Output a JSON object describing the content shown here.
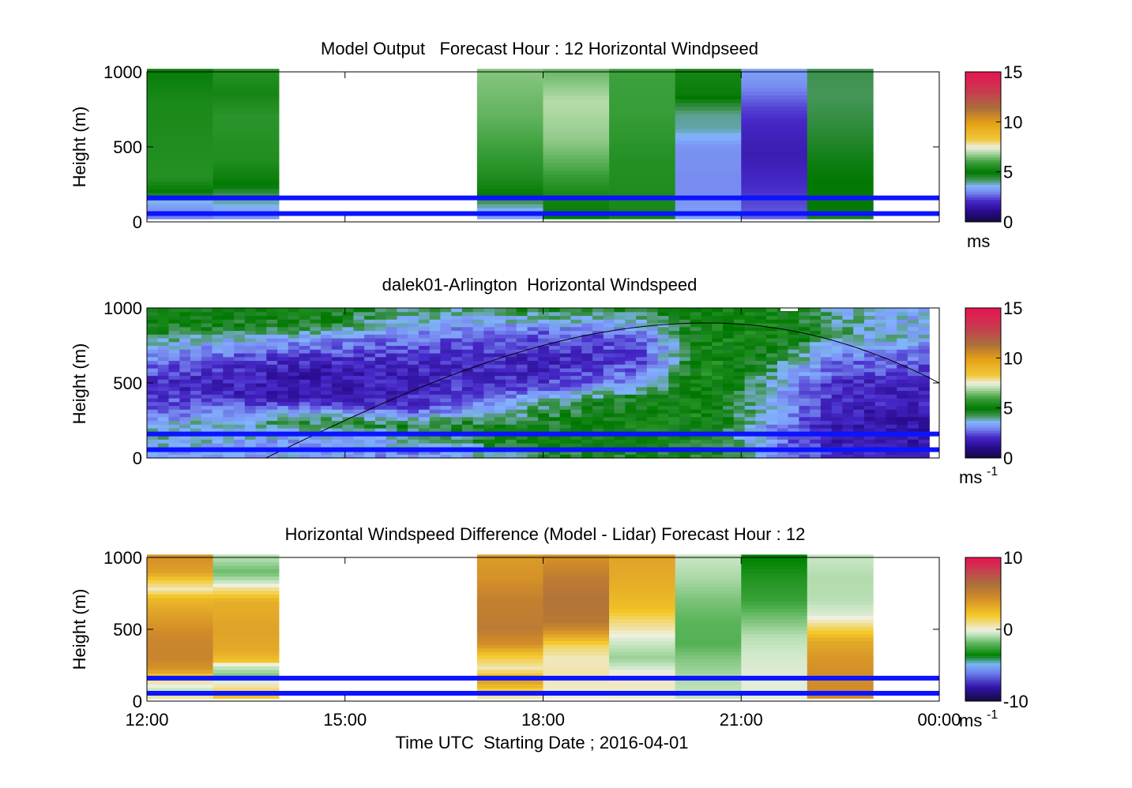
{
  "chart_data": [
    {
      "type": "heatmap",
      "title": "Model Output   Forecast Hour : 12 Horizontal Windpseed",
      "ylabel": "Height (m)",
      "ylim": [
        0,
        1000
      ],
      "yticks": [
        "0",
        "500",
        "1000"
      ],
      "xlim_hours": [
        12,
        24
      ],
      "colorbar": {
        "ticks": [
          "0",
          "5",
          "10",
          "15"
        ],
        "range": [
          0,
          15
        ],
        "unit": "ms",
        "unit_sup": ""
      },
      "reference_lines_m": [
        55,
        160
      ],
      "columns": [
        {
          "t0": 12.0,
          "t1": 13.0,
          "z_top": 1000,
          "speed": [
            [
              1000,
              5.1
            ],
            [
              800,
              5.4
            ],
            [
              500,
              5.5
            ],
            [
              300,
              5.6
            ],
            [
              200,
              5.0
            ],
            [
              120,
              3.4
            ],
            [
              40,
              2.9
            ]
          ]
        },
        {
          "t0": 13.0,
          "t1": 14.0,
          "z_top": 1000,
          "speed": [
            [
              1000,
              5.6
            ],
            [
              860,
              5.3
            ],
            [
              700,
              5.7
            ],
            [
              400,
              5.5
            ],
            [
              250,
              5.0
            ],
            [
              170,
              4.2
            ],
            [
              100,
              3.6
            ],
            [
              40,
              3.1
            ]
          ]
        },
        {
          "t0": 17.0,
          "t1": 18.0,
          "z_top": 1000,
          "speed": [
            [
              1000,
              6.6
            ],
            [
              700,
              6.3
            ],
            [
              500,
              6.0
            ],
            [
              300,
              5.5
            ],
            [
              200,
              5.1
            ],
            [
              100,
              3.8
            ],
            [
              40,
              3.3
            ]
          ]
        },
        {
          "t0": 18.0,
          "t1": 19.0,
          "z_top": 1000,
          "speed": [
            [
              1000,
              6.4
            ],
            [
              800,
              7.0
            ],
            [
              550,
              6.7
            ],
            [
              350,
              6.1
            ],
            [
              220,
              5.5
            ],
            [
              120,
              5.2
            ],
            [
              40,
              5.0
            ]
          ]
        },
        {
          "t0": 19.0,
          "t1": 20.0,
          "z_top": 1000,
          "speed": [
            [
              1000,
              6.0
            ],
            [
              700,
              5.9
            ],
            [
              450,
              5.6
            ],
            [
              250,
              5.5
            ],
            [
              120,
              5.4
            ],
            [
              40,
              5.3
            ]
          ]
        },
        {
          "t0": 20.0,
          "t1": 21.0,
          "z_top": 1000,
          "speed": [
            [
              1000,
              5.3
            ],
            [
              850,
              5.1
            ],
            [
              720,
              4.0
            ],
            [
              620,
              3.9
            ],
            [
              500,
              3.1
            ],
            [
              300,
              3.0
            ],
            [
              200,
              3.0
            ],
            [
              100,
              3.2
            ],
            [
              40,
              3.4
            ]
          ]
        },
        {
          "t0": 21.0,
          "t1": 22.0,
          "z_top": 1000,
          "speed": [
            [
              1000,
              3.3
            ],
            [
              900,
              3.0
            ],
            [
              750,
              2.3
            ],
            [
              600,
              1.9
            ],
            [
              450,
              1.7
            ],
            [
              300,
              2.0
            ],
            [
              150,
              2.3
            ],
            [
              40,
              2.6
            ]
          ]
        },
        {
          "t0": 22.0,
          "t1": 23.0,
          "z_top": 1000,
          "speed": [
            [
              1000,
              4.3
            ],
            [
              850,
              4.2
            ],
            [
              600,
              4.5
            ],
            [
              400,
              4.8
            ],
            [
              200,
              5.0
            ],
            [
              100,
              5.0
            ],
            [
              40,
              4.7
            ]
          ]
        }
      ]
    },
    {
      "type": "heatmap",
      "title": "dalek01-Arlington  Horizontal Windspeed",
      "ylabel": "Height (m)",
      "ylim": [
        0,
        1000
      ],
      "yticks": [
        "0",
        "500",
        "1000"
      ],
      "xlim_hours": [
        12,
        24
      ],
      "colorbar": {
        "ticks": [
          "0",
          "5",
          "10",
          "15"
        ],
        "range": [
          0,
          15
        ],
        "unit": "ms",
        "unit_sup": "-1"
      },
      "reference_lines_m": [
        55,
        160
      ],
      "boundary_layer_curve": {
        "t_start": 13.8,
        "t_peak": 20.5,
        "z_peak": 900,
        "t_end": 24.0,
        "z_end": 500
      },
      "keyframes": [
        {
          "t": 12.0,
          "profile": [
            [
              1000,
              5.0
            ],
            [
              850,
              4.8
            ],
            [
              700,
              3.2
            ],
            [
              500,
              2.0
            ],
            [
              300,
              2.8
            ],
            [
              150,
              4.0
            ],
            [
              40,
              3.5
            ]
          ]
        },
        {
          "t": 14.5,
          "profile": [
            [
              1000,
              5.2
            ],
            [
              880,
              4.6
            ],
            [
              780,
              3.0
            ],
            [
              600,
              1.6
            ],
            [
              400,
              1.6
            ],
            [
              250,
              4.5
            ],
            [
              120,
              3.2
            ],
            [
              40,
              3.4
            ]
          ]
        },
        {
          "t": 16.0,
          "profile": [
            [
              1000,
              4.0
            ],
            [
              900,
              3.5
            ],
            [
              750,
              2.5
            ],
            [
              550,
              1.8
            ],
            [
              350,
              2.0
            ],
            [
              220,
              4.6
            ],
            [
              100,
              3.6
            ],
            [
              40,
              3.0
            ]
          ]
        },
        {
          "t": 18.0,
          "profile": [
            [
              1000,
              4.6
            ],
            [
              930,
              3.8
            ],
            [
              820,
              2.5
            ],
            [
              650,
              1.8
            ],
            [
              500,
              2.2
            ],
            [
              350,
              4.2
            ],
            [
              200,
              4.8
            ],
            [
              80,
              5.0
            ],
            [
              40,
              4.5
            ]
          ]
        },
        {
          "t": 19.5,
          "profile": [
            [
              1000,
              4.8
            ],
            [
              900,
              3.6
            ],
            [
              800,
              2.6
            ],
            [
              650,
              2.4
            ],
            [
              520,
              3.2
            ],
            [
              380,
              5.0
            ],
            [
              200,
              5.2
            ],
            [
              40,
              4.8
            ]
          ]
        },
        {
          "t": 20.5,
          "profile": [
            [
              1000,
              5.0
            ],
            [
              800,
              5.2
            ],
            [
              600,
              5.5
            ],
            [
              400,
              5.3
            ],
            [
              250,
              5.2
            ],
            [
              120,
              4.8
            ],
            [
              40,
              4.6
            ]
          ]
        },
        {
          "t": 21.5,
          "profile": [
            [
              1000,
              5.2
            ],
            [
              800,
              5.3
            ],
            [
              600,
              4.2
            ],
            [
              450,
              3.6
            ],
            [
              300,
              3.3
            ],
            [
              180,
              3.0
            ],
            [
              80,
              3.0
            ],
            [
              40,
              3.2
            ]
          ]
        },
        {
          "t": 22.5,
          "profile": [
            [
              1000,
              3.6
            ],
            [
              850,
              4.2
            ],
            [
              700,
              3.0
            ],
            [
              500,
              2.0
            ],
            [
              300,
              1.8
            ],
            [
              120,
              1.6
            ],
            [
              40,
              2.0
            ]
          ]
        },
        {
          "t": 23.8,
          "profile": [
            [
              1000,
              3.4
            ],
            [
              800,
              3.5
            ],
            [
              650,
              2.6
            ],
            [
              500,
              2.0
            ],
            [
              300,
              1.6
            ],
            [
              120,
              1.5
            ],
            [
              40,
              1.8
            ]
          ]
        }
      ]
    },
    {
      "type": "heatmap",
      "title": "Horizontal Windspeed Difference (Model - Lidar) Forecast Hour : 12",
      "ylabel": "Height (m)",
      "xlabel": "Time UTC  Starting Date ; 2016-04-01",
      "xticks": [
        "12:00",
        "15:00",
        "18:00",
        "21:00",
        "00:00"
      ],
      "ylim": [
        0,
        1000
      ],
      "yticks": [
        "0",
        "500",
        "1000"
      ],
      "xlim_hours": [
        12,
        24
      ],
      "colorbar": {
        "ticks": [
          "-10",
          "0",
          "10"
        ],
        "range": [
          -10,
          10
        ],
        "unit": "ms",
        "unit_sup": "-1"
      },
      "reference_lines_m": [
        55,
        160
      ],
      "columns": [
        {
          "t0": 12.0,
          "t1": 13.0,
          "z_top": 1000,
          "diff": [
            [
              1000,
              4.2
            ],
            [
              900,
              3.6
            ],
            [
              840,
              1.8
            ],
            [
              780,
              0.3
            ],
            [
              720,
              2.6
            ],
            [
              600,
              3.6
            ],
            [
              450,
              4.7
            ],
            [
              300,
              4.9
            ],
            [
              220,
              4.0
            ],
            [
              180,
              2.2
            ],
            [
              130,
              0.4
            ],
            [
              80,
              -0.6
            ],
            [
              40,
              0.6
            ]
          ]
        },
        {
          "t0": 13.0,
          "t1": 14.0,
          "z_top": 1000,
          "diff": [
            [
              1000,
              -0.8
            ],
            [
              900,
              -1.8
            ],
            [
              820,
              -0.4
            ],
            [
              790,
              0.6
            ],
            [
              700,
              3.0
            ],
            [
              500,
              3.5
            ],
            [
              350,
              3.2
            ],
            [
              280,
              2.2
            ],
            [
              270,
              0.5
            ],
            [
              240,
              -0.6
            ],
            [
              180,
              -1.5
            ],
            [
              100,
              0.7
            ],
            [
              40,
              2.2
            ]
          ]
        },
        {
          "t0": 17.0,
          "t1": 18.0,
          "z_top": 1000,
          "diff": [
            [
              1000,
              3.8
            ],
            [
              850,
              4.2
            ],
            [
              700,
              5.2
            ],
            [
              500,
              5.5
            ],
            [
              400,
              4.3
            ],
            [
              320,
              2.0
            ],
            [
              230,
              0.4
            ],
            [
              180,
              2.2
            ],
            [
              130,
              3.4
            ],
            [
              60,
              1.2
            ],
            [
              40,
              0.5
            ]
          ]
        },
        {
          "t0": 18.0,
          "t1": 19.0,
          "z_top": 1000,
          "diff": [
            [
              1000,
              4.2
            ],
            [
              850,
              5.5
            ],
            [
              700,
              6.0
            ],
            [
              550,
              5.7
            ],
            [
              450,
              3.2
            ],
            [
              380,
              1.2
            ],
            [
              300,
              0.3
            ],
            [
              200,
              0.5
            ],
            [
              120,
              0.3
            ],
            [
              40,
              0.1
            ]
          ]
        },
        {
          "t0": 19.0,
          "t1": 20.0,
          "z_top": 1000,
          "diff": [
            [
              1000,
              3.5
            ],
            [
              800,
              3.0
            ],
            [
              650,
              2.4
            ],
            [
              550,
              1.0
            ],
            [
              480,
              0.2
            ],
            [
              400,
              -0.6
            ],
            [
              300,
              -1.2
            ],
            [
              230,
              -0.4
            ],
            [
              200,
              0.0
            ],
            [
              150,
              0.3
            ],
            [
              40,
              0.2
            ]
          ]
        },
        {
          "t0": 20.0,
          "t1": 21.0,
          "z_top": 1000,
          "diff": [
            [
              1000,
              -0.6
            ],
            [
              850,
              -1.0
            ],
            [
              700,
              -1.6
            ],
            [
              550,
              -2.0
            ],
            [
              400,
              -2.1
            ],
            [
              300,
              -1.5
            ],
            [
              200,
              -1.1
            ],
            [
              120,
              -0.8
            ],
            [
              40,
              -0.7
            ]
          ]
        },
        {
          "t0": 21.0,
          "t1": 22.0,
          "z_top": 1000,
          "diff": [
            [
              1000,
              -3.6
            ],
            [
              850,
              -3.0
            ],
            [
              700,
              -2.6
            ],
            [
              600,
              -1.8
            ],
            [
              450,
              -0.8
            ],
            [
              300,
              -0.4
            ],
            [
              150,
              -0.2
            ],
            [
              40,
              -0.2
            ]
          ]
        },
        {
          "t0": 22.0,
          "t1": 23.0,
          "z_top": 1000,
          "diff": [
            [
              1000,
              -0.6
            ],
            [
              850,
              -0.9
            ],
            [
              700,
              -0.8
            ],
            [
              600,
              -0.3
            ],
            [
              570,
              0.2
            ],
            [
              550,
              0.5
            ],
            [
              500,
              1.6
            ],
            [
              420,
              3.2
            ],
            [
              300,
              4.0
            ],
            [
              150,
              4.4
            ],
            [
              40,
              4.5
            ]
          ]
        }
      ]
    }
  ]
}
